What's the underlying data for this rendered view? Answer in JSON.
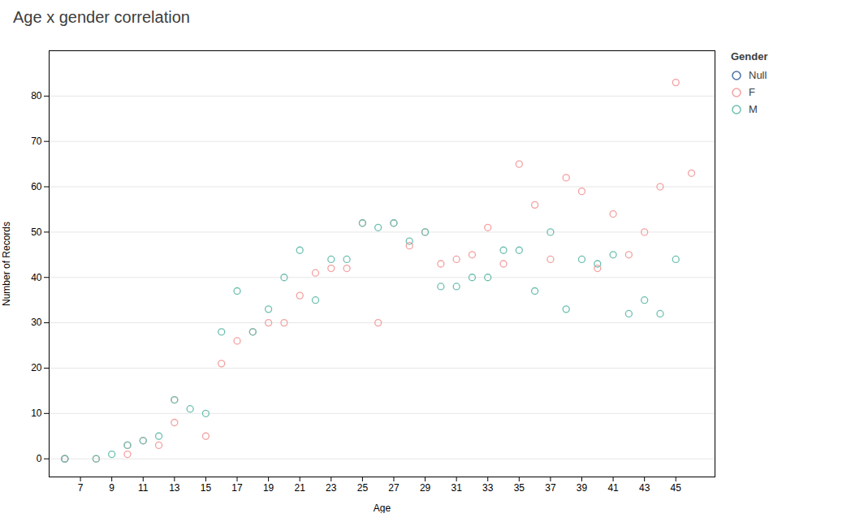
{
  "chart_data": {
    "type": "scatter",
    "title": "Age x gender correlation",
    "xlabel": "Age",
    "ylabel": "Number of Records",
    "legend_title": "Gender",
    "legend": "upper right",
    "grid": true,
    "marker": "circle",
    "xlim": [
      5,
      47.5
    ],
    "ylim": [
      -4,
      90
    ],
    "xticks": [
      7,
      9,
      11,
      13,
      15,
      17,
      19,
      21,
      23,
      25,
      27,
      29,
      31,
      33,
      35,
      37,
      39,
      41,
      43,
      45
    ],
    "yticks": [
      0,
      10,
      20,
      30,
      40,
      50,
      60,
      70,
      80
    ],
    "series": [
      {
        "name": "Null",
        "color": "#4a6fa5",
        "x": [
          6
        ],
        "values": [
          0
        ]
      },
      {
        "name": "F",
        "color": "#f4a0a0",
        "x": [
          6,
          8,
          10,
          10,
          11,
          12,
          13,
          13,
          15,
          16,
          17,
          18,
          19,
          20,
          21,
          22,
          23,
          24,
          25,
          26,
          27,
          28,
          29,
          30,
          31,
          32,
          33,
          34,
          35,
          36,
          37,
          38,
          39,
          40,
          41,
          42,
          43,
          44,
          45,
          46
        ],
        "values": [
          0,
          0,
          1,
          3,
          4,
          3,
          8,
          13,
          5,
          21,
          26,
          28,
          30,
          30,
          36,
          41,
          42,
          42,
          52,
          30,
          52,
          47,
          50,
          43,
          44,
          45,
          51,
          43,
          65,
          56,
          44,
          62,
          59,
          42,
          54,
          45,
          50,
          60,
          83,
          63
        ]
      },
      {
        "name": "M",
        "color": "#6dbfb0",
        "x": [
          6,
          8,
          9,
          10,
          11,
          12,
          13,
          14,
          15,
          16,
          17,
          18,
          19,
          20,
          21,
          22,
          23,
          24,
          25,
          26,
          27,
          28,
          29,
          30,
          31,
          32,
          33,
          34,
          35,
          36,
          37,
          38,
          39,
          40,
          41,
          42,
          43,
          44,
          45
        ],
        "values": [
          0,
          0,
          1,
          3,
          4,
          5,
          13,
          11,
          10,
          28,
          37,
          28,
          33,
          40,
          46,
          35,
          44,
          44,
          52,
          51,
          52,
          48,
          50,
          38,
          38,
          40,
          40,
          46,
          46,
          37,
          50,
          33,
          44,
          43,
          45,
          32,
          35,
          32,
          44
        ]
      }
    ]
  }
}
